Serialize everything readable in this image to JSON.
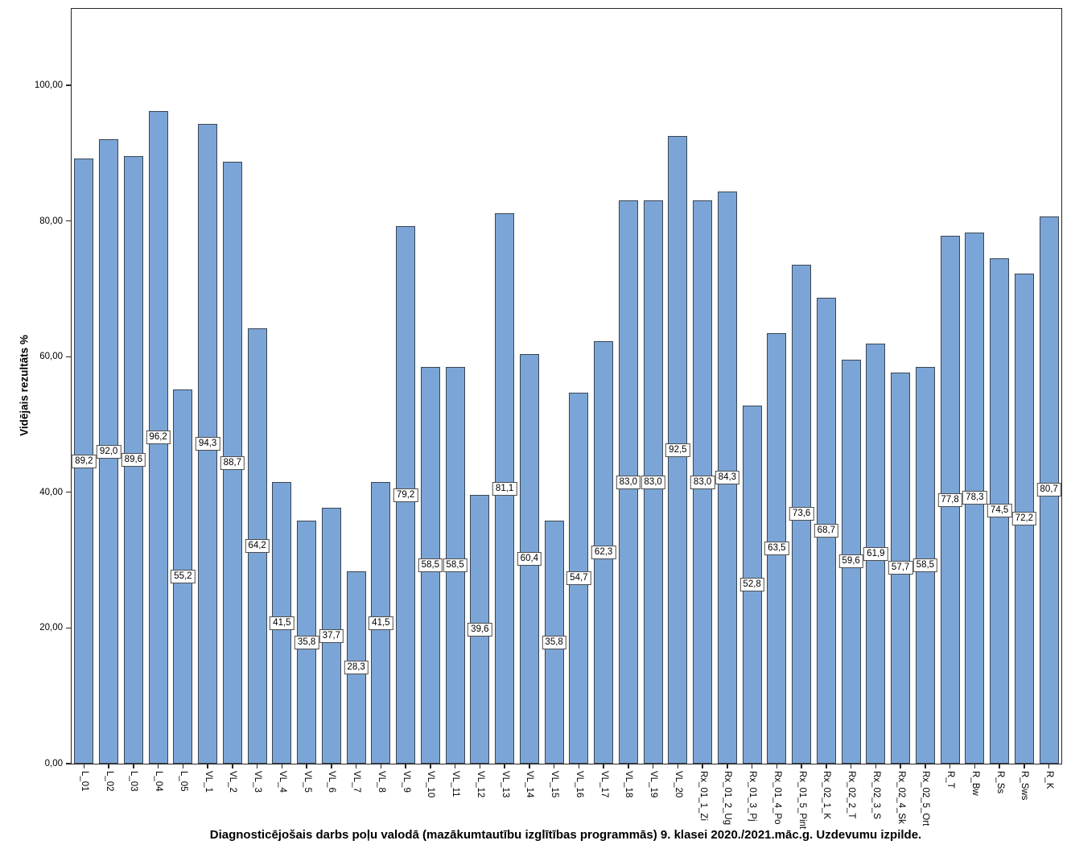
{
  "chart_data": {
    "type": "bar",
    "title": "Diagnosticējošais darbs poļu valodā (mazākumtautību izglītības programmās) 9. klasei 2020./2021.māc.g. Uzdevumu izpilde.",
    "xlabel": "",
    "ylabel": "Vidējais rezultāts %",
    "ylim": [
      0,
      111
    ],
    "grid": false,
    "legend": null,
    "bar_label_position": "middle-of-bar",
    "decimal_separator": ",",
    "yticks_values": [
      0,
      20,
      40,
      60,
      80,
      100
    ],
    "yticks_labels": [
      "0,00",
      "20,00",
      "40,00",
      "60,00",
      "80,00",
      "100,00"
    ],
    "categories": [
      "L_01",
      "L_02",
      "L_03",
      "L_04",
      "L_05",
      "VL_1",
      "VL_2",
      "VL_3",
      "VL_4",
      "VL_5",
      "VL_6",
      "VL_7",
      "VL_8",
      "VL_9",
      "VL_10",
      "VL_11",
      "VL_12",
      "VL_13",
      "VL_14",
      "VL_15",
      "VL_16",
      "VL_17",
      "VL_18",
      "VL_19",
      "VL_20",
      "Rx_01_1_Zi",
      "Rx_01_2_Ug",
      "Rx_01_3_Pj",
      "Rx_01_4_Po",
      "Rx_01_5_Pint",
      "Rx_02_1_K",
      "Rx_02_2_T",
      "Rx_02_3_S",
      "Rx_02_4_Sk",
      "Rx_02_5_Ort",
      "R_T",
      "R_Bw",
      "R_Ss",
      "R_Sws",
      "R_K"
    ],
    "values": [
      89.2,
      92.0,
      89.6,
      96.2,
      55.2,
      94.3,
      88.7,
      64.2,
      41.5,
      35.8,
      37.7,
      28.3,
      41.5,
      79.2,
      58.5,
      58.5,
      39.6,
      81.1,
      60.4,
      35.8,
      54.7,
      62.3,
      83.0,
      83.0,
      92.5,
      83.0,
      84.3,
      52.8,
      63.5,
      73.6,
      68.7,
      59.6,
      61.9,
      57.7,
      58.5,
      77.8,
      78.3,
      74.5,
      72.2,
      80.7
    ],
    "value_labels": [
      "89,2",
      "92,0",
      "89,6",
      "96,2",
      "55,2",
      "94,3",
      "88,7",
      "64,2",
      "41,5",
      "35,8",
      "37,7",
      "28,3",
      "41,5",
      "79,2",
      "58,5",
      "58,5",
      "39,6",
      "81,1",
      "60,4",
      "35,8",
      "54,7",
      "62,3",
      "83,0",
      "83,0",
      "92,5",
      "83,0",
      "84,3",
      "52,8",
      "63,5",
      "73,6",
      "68,7",
      "59,6",
      "61,9",
      "57,7",
      "58,5",
      "77,8",
      "78,3",
      "74,5",
      "72,2",
      "80,7"
    ],
    "colors": {
      "bar_fill": "#7BA5D6",
      "bar_border": "#3A4553",
      "axis": "#262626",
      "value_box_bg": "#FFFFFF",
      "value_box_border": "#4D4D4D",
      "text": "#000000"
    }
  }
}
